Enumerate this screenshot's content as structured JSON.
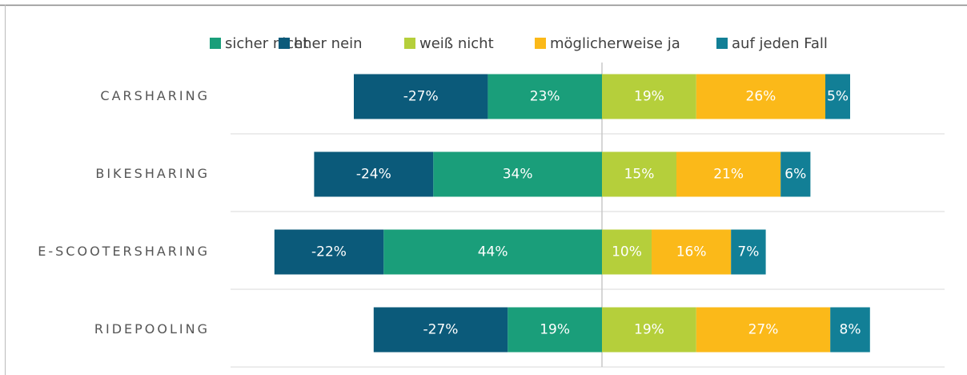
{
  "chart_data": {
    "type": "diverging_bar",
    "categories": [
      "CARSHARING",
      "BIKESHARING",
      "E-SCOOTERSHARING",
      "RIDEPOOLING"
    ],
    "series": [
      {
        "name": "sicher nicht",
        "color": "#1a9e7a",
        "values": [
          23,
          34,
          44,
          19
        ],
        "value_labels": [
          "23%",
          "34%",
          "44%",
          "19%"
        ]
      },
      {
        "name": "eher nein",
        "color": "#0b5a7a",
        "values": [
          -27,
          -24,
          -22,
          -27
        ],
        "value_labels": [
          "-27%",
          "-24%",
          "-22%",
          "-27%"
        ]
      },
      {
        "name": "weiß nicht",
        "color": "#b5cf3b",
        "values": [
          19,
          15,
          10,
          19
        ],
        "value_labels": [
          "19%",
          "15%",
          "10%",
          "19%"
        ]
      },
      {
        "name": "möglicherweise ja",
        "color": "#fbb919",
        "values": [
          26,
          21,
          16,
          27
        ],
        "value_labels": [
          "26%",
          "21%",
          "16%",
          "27%"
        ]
      },
      {
        "name": "auf jeden Fall",
        "color": "#127f96",
        "values": [
          5,
          6,
          7,
          8
        ],
        "value_labels": [
          "5%",
          "6%",
          "7%",
          "8%"
        ]
      }
    ],
    "legend": "top"
  }
}
